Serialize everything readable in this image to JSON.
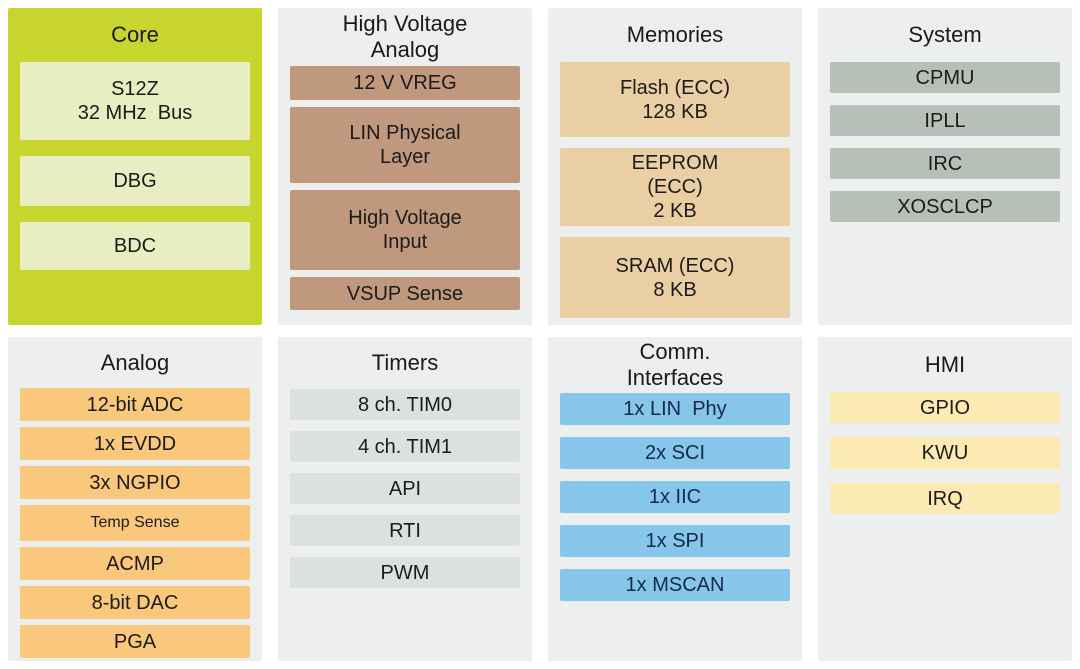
{
  "colors": {
    "page_background": "#ffffff",
    "panel_background": "#edefef",
    "core_panel": "#c8d52f",
    "core_block": "#e9edc2",
    "high_voltage_block": "#c0987d",
    "memories_block": "#ebcfa4",
    "system_block": "#b7bfb9",
    "analog_block": "#f9c87c",
    "timers_block": "#dde1dd",
    "comm_block": "#85c6ea",
    "hmi_block": "#fdeab2"
  },
  "panels": [
    {
      "title": "Core",
      "blocks": [
        "S12Z\n32 MHz  Bus",
        "DBG",
        "BDC"
      ]
    },
    {
      "title": "High Voltage\nAnalog",
      "blocks": [
        "12 V VREG",
        "LIN Physical\nLayer",
        "High Voltage\nInput",
        "VSUP Sense"
      ]
    },
    {
      "title": "Memories",
      "blocks": [
        "Flash (ECC)\n128 KB",
        "EEPROM\n(ECC)\n2 KB",
        "SRAM (ECC)\n8 KB"
      ]
    },
    {
      "title": "System",
      "blocks": [
        "CPMU",
        "IPLL",
        "IRC",
        "XOSCLCP"
      ]
    },
    {
      "title": "Analog",
      "blocks": [
        "12-bit ADC",
        "1x EVDD",
        "3x NGPIO",
        "Temp Sense",
        "ACMP",
        "8-bit DAC",
        "PGA"
      ]
    },
    {
      "title": "Timers",
      "blocks": [
        "8 ch. TIM0",
        "4 ch. TIM1",
        "API",
        "RTI",
        "PWM"
      ]
    },
    {
      "title": "Comm.\nInterfaces",
      "blocks": [
        "1x LIN  Phy",
        "2x SCI",
        "1x IIC",
        "1x SPI",
        "1x MSCAN"
      ]
    },
    {
      "title": "HMI",
      "blocks": [
        "GPIO",
        "KWU",
        "IRQ"
      ]
    }
  ]
}
